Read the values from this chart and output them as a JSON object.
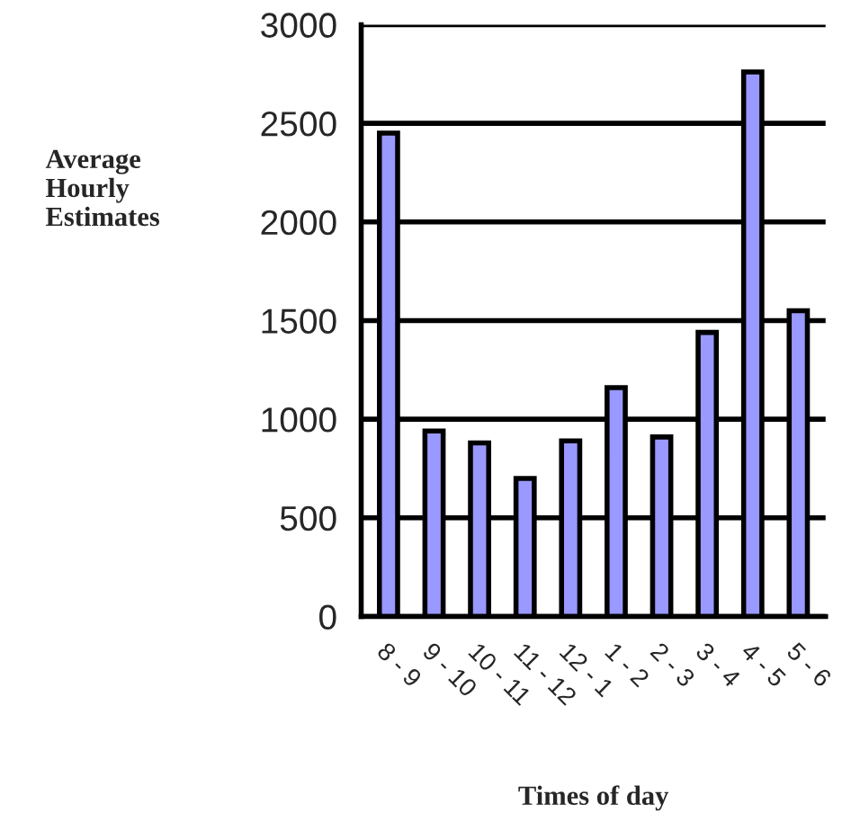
{
  "chart_data": {
    "type": "bar",
    "xlabel": "Times of day",
    "ylabel": "Average\nHourly\nEstimates",
    "categories": [
      "8 - 9",
      "9 - 10",
      "10 - 11",
      "11 - 12",
      "12 - 1",
      "1 - 2",
      "2 - 3",
      "3 - 4",
      "4 - 5",
      "5 - 6"
    ],
    "values": [
      2450,
      940,
      880,
      700,
      890,
      1160,
      910,
      1440,
      2760,
      1550
    ],
    "color": "#9999ff",
    "ylim": [
      0,
      3000
    ],
    "yticks": [
      0,
      500,
      1000,
      1500,
      2000,
      2500,
      3000
    ],
    "grid": "y"
  }
}
